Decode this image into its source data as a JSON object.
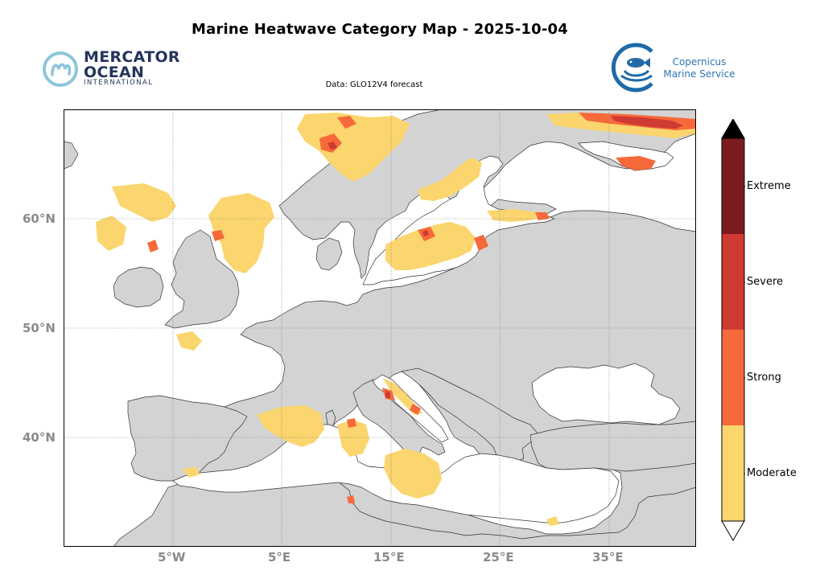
{
  "title": "Marine Heatwave Category Map - 2025-10-04",
  "subtitle": "Data: GLO12V4 forecast",
  "logos": {
    "mercator": {
      "line1": "MERCATOR",
      "line2": "OCEAN",
      "line3": "INTERNATIONAL"
    },
    "copernicus": {
      "line1": "Copernicus",
      "line2": "Marine Service"
    }
  },
  "map": {
    "projection": "plate carree",
    "lon_range": [
      -15,
      43
    ],
    "lat_range": [
      30,
      70
    ],
    "land_color": "#d3d3d3",
    "sea_color": "#ffffff",
    "gridlines": true,
    "lat_ticks": [
      {
        "label": "60°N"
      },
      {
        "label": "50°N"
      },
      {
        "label": "40°N"
      }
    ],
    "lon_ticks": [
      {
        "label": "5°W"
      },
      {
        "label": "5°E"
      },
      {
        "label": "15°E"
      },
      {
        "label": "25°E"
      },
      {
        "label": "35°E"
      }
    ]
  },
  "colorbar": {
    "categories": [
      {
        "label": "Extreme",
        "color": "#7b1b1f"
      },
      {
        "label": "Severe",
        "color": "#cf3a33"
      },
      {
        "label": "Strong",
        "color": "#f6693a"
      },
      {
        "label": "Moderate",
        "color": "#fbd56e"
      }
    ],
    "extend_max_color": "#000000",
    "extend_min_color": "#ffffff"
  }
}
